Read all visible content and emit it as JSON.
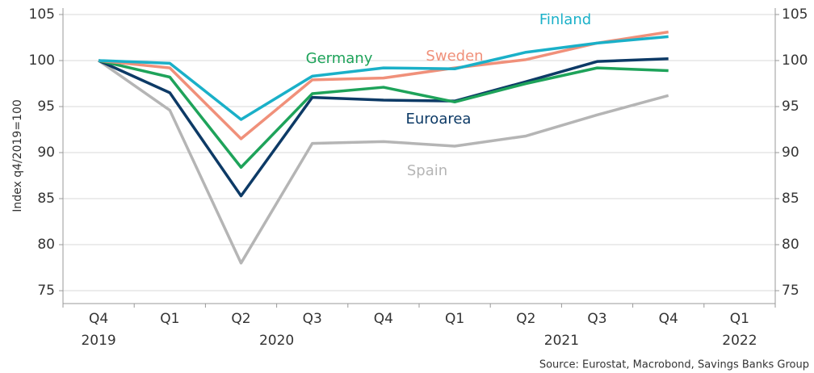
{
  "chart_data": {
    "type": "line",
    "y_label": "Index q4/2019=100",
    "source": "Source: Eurostat, Macrobond, Savings Banks Group",
    "categories": [
      "Q4",
      "Q1",
      "Q2",
      "Q3",
      "Q4",
      "Q1",
      "Q2",
      "Q3",
      "Q4",
      "Q1"
    ],
    "year_groups": [
      {
        "label": "2019",
        "first": 0,
        "last": 0
      },
      {
        "label": "2020",
        "first": 1,
        "last": 4
      },
      {
        "label": "2021",
        "first": 5,
        "last": 8
      },
      {
        "label": "2022",
        "first": 9,
        "last": 9
      }
    ],
    "series": [
      {
        "name": "Finland",
        "color": "#1ab0c8",
        "values": [
          100,
          99.7,
          93.6,
          98.3,
          99.2,
          99.1,
          100.9,
          101.9,
          102.6,
          null
        ]
      },
      {
        "name": "Sweden",
        "color": "#f0907a",
        "values": [
          100,
          99.2,
          91.5,
          97.9,
          98.1,
          99.2,
          100.1,
          101.9,
          103.1,
          null
        ]
      },
      {
        "name": "Germany",
        "color": "#1ea35a",
        "values": [
          100,
          98.2,
          88.4,
          96.4,
          97.1,
          95.5,
          97.5,
          99.2,
          98.9,
          null
        ]
      },
      {
        "name": "Euroarea",
        "color": "#0d3a66",
        "values": [
          100,
          96.5,
          85.3,
          96.0,
          95.7,
          95.6,
          97.7,
          99.9,
          100.2,
          null
        ]
      },
      {
        "name": "Spain",
        "color": "#b5b5b5",
        "values": [
          100,
          94.6,
          78.0,
          91.0,
          91.2,
          90.7,
          91.8,
          94.1,
          96.2,
          null
        ]
      }
    ],
    "ylim": [
      73.6,
      105.7
    ],
    "yticks": [
      75,
      80,
      85,
      90,
      95,
      100,
      105
    ],
    "y2lim": [
      73.6,
      105.7
    ],
    "y2ticks": [
      75,
      80,
      85,
      90,
      95,
      100,
      105
    ],
    "grid": true
  }
}
